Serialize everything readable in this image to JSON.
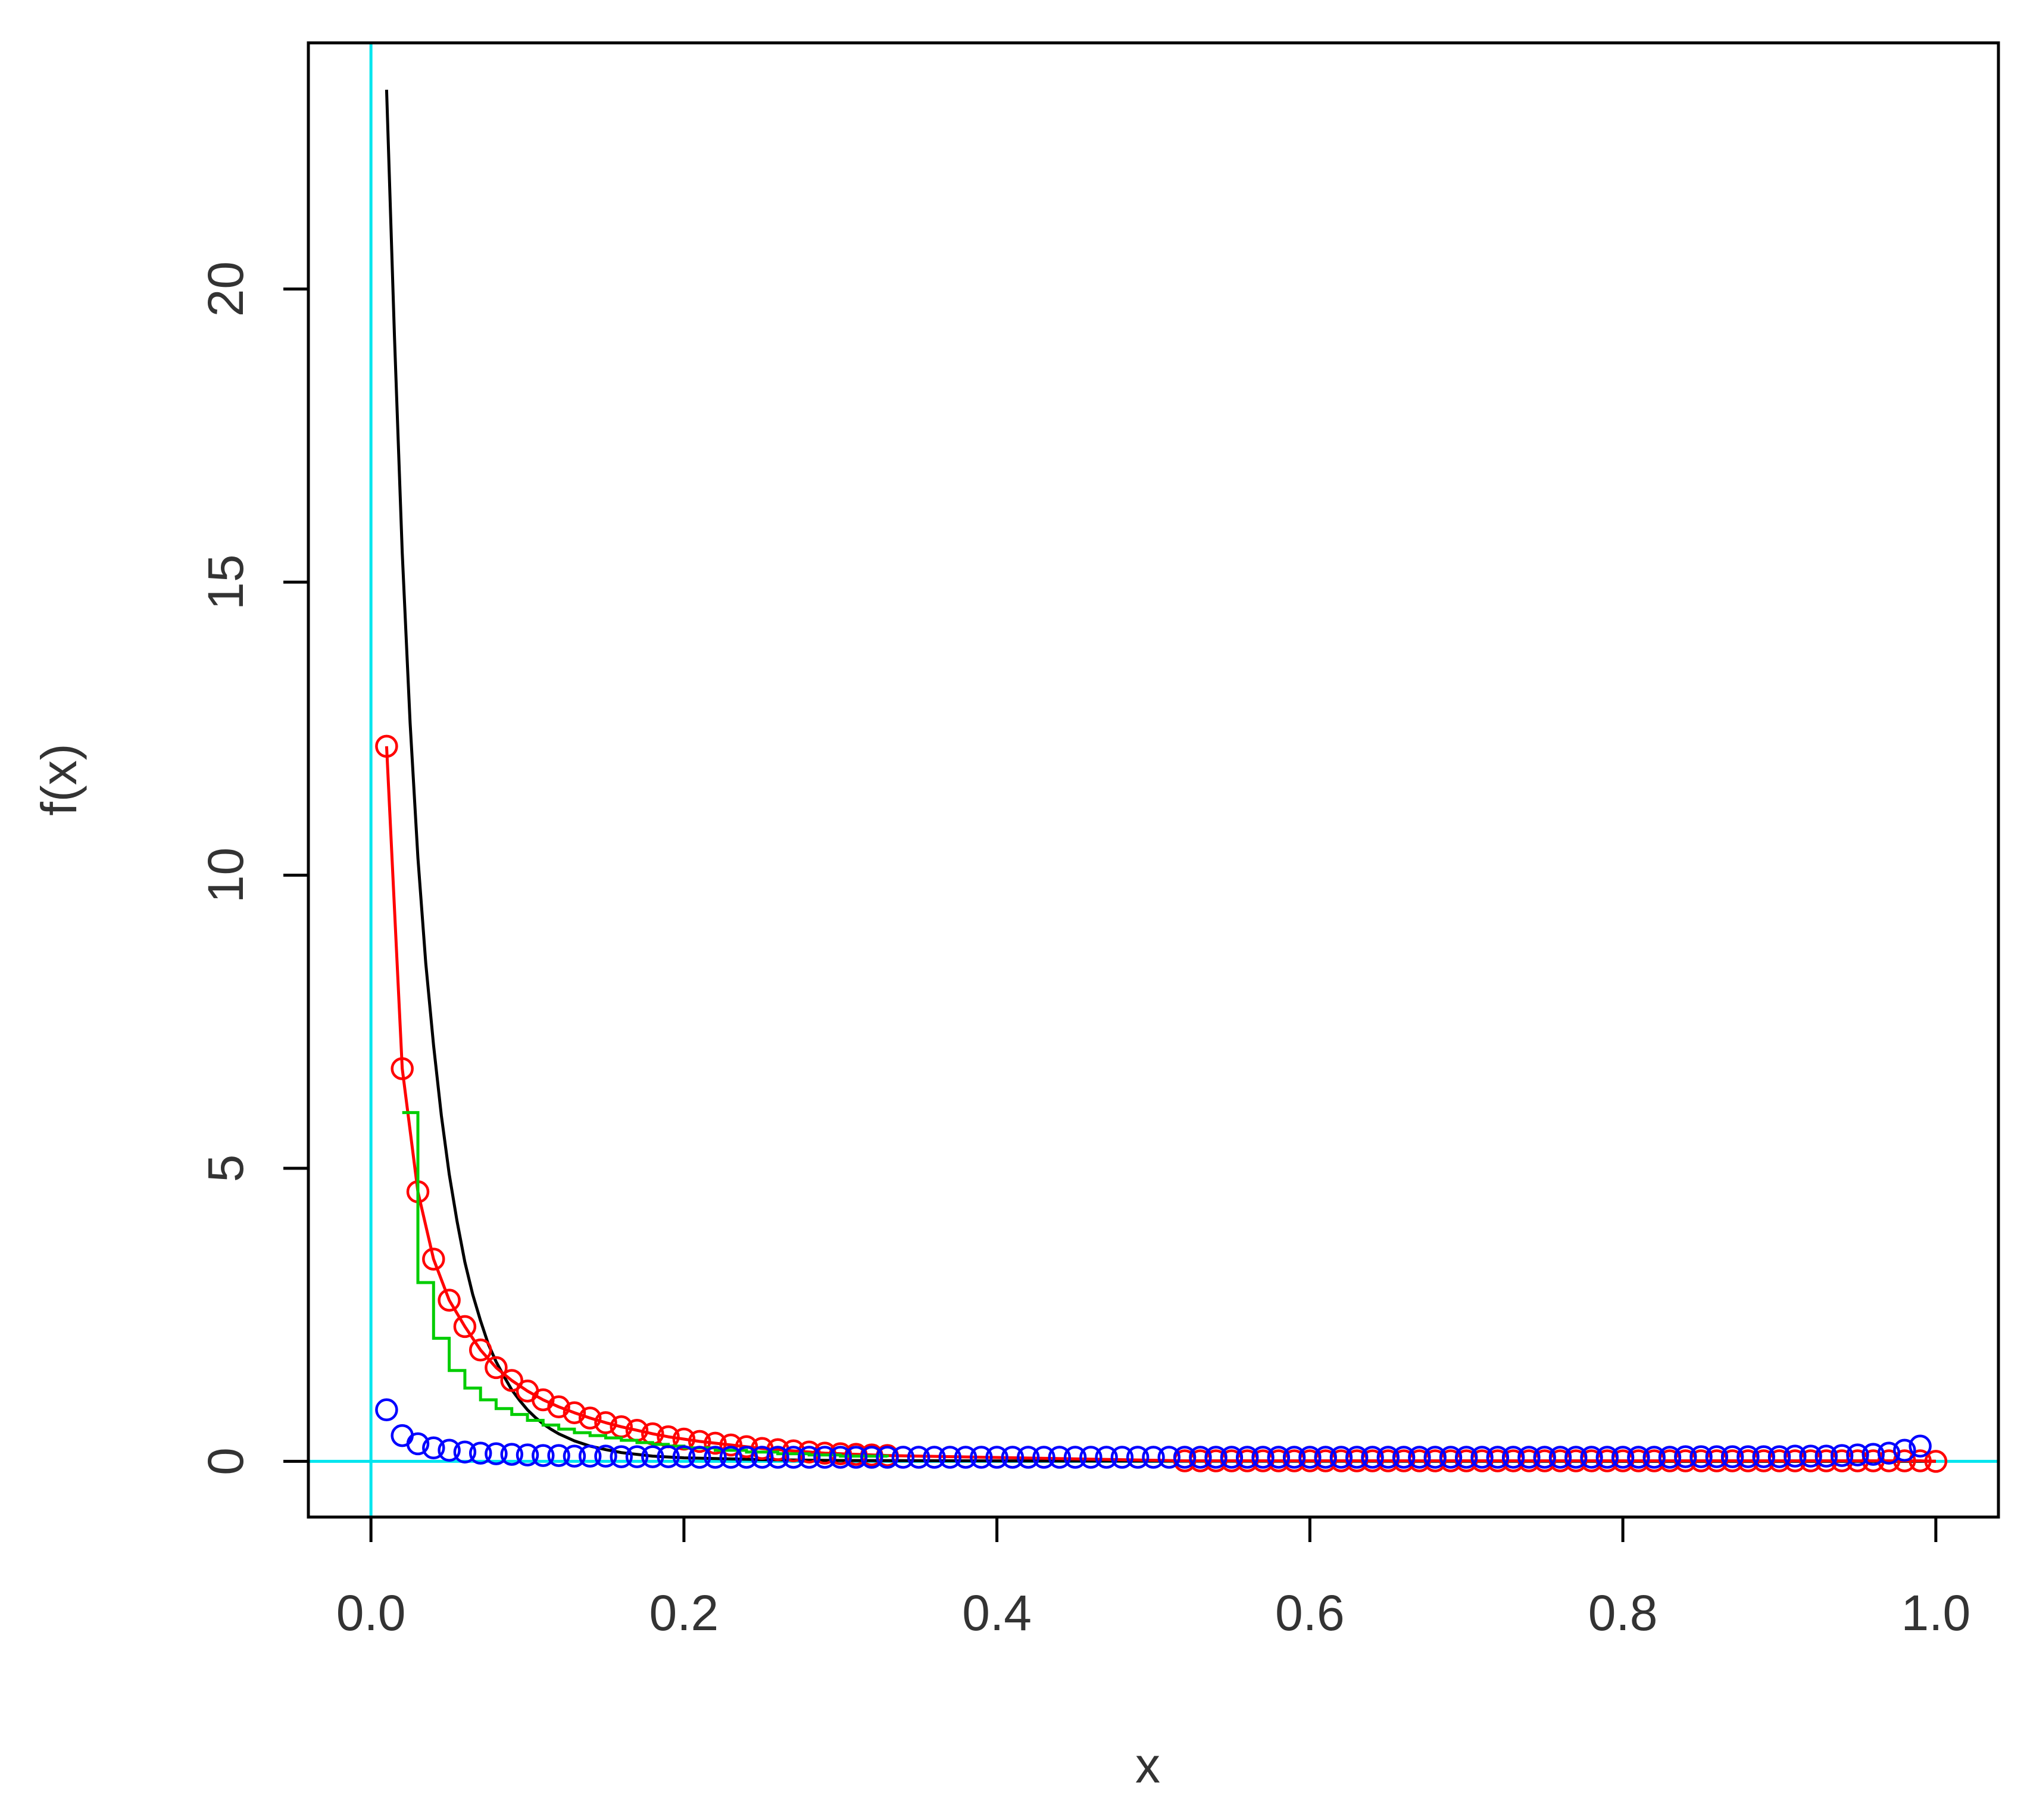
{
  "chart_data": {
    "type": "line",
    "xlabel": "x",
    "ylabel": "f(x)",
    "xlim": [
      -0.04,
      1.04
    ],
    "ylim": [
      -0.95,
      24.2
    ],
    "x_ticks": [
      0.0,
      0.2,
      0.4,
      0.6,
      0.8,
      1.0
    ],
    "x_tick_labels": [
      "0.0",
      "0.2",
      "0.4",
      "0.6",
      "0.8",
      "1.0"
    ],
    "y_ticks": [
      0,
      5,
      10,
      15,
      20
    ],
    "y_tick_labels": [
      "0",
      "5",
      "10",
      "15",
      "20"
    ],
    "grid": false,
    "reference_lines": [
      {
        "orientation": "vertical",
        "x": 0,
        "color": "#00e5ee"
      },
      {
        "orientation": "horizontal",
        "y": 0,
        "color": "#00e5ee"
      }
    ],
    "series": [
      {
        "color": "#000000",
        "style": "line",
        "x": [
          0.01,
          0.015,
          0.02,
          0.025,
          0.03,
          0.035,
          0.04,
          0.045,
          0.05,
          0.055,
          0.06,
          0.065,
          0.07,
          0.075,
          0.08,
          0.085,
          0.09,
          0.095,
          0.1,
          0.105,
          0.11,
          0.115,
          0.12,
          0.13,
          0.14,
          0.15,
          0.16,
          0.18,
          0.2,
          0.25,
          0.3,
          0.4,
          0.5,
          0.6,
          0.7,
          0.8,
          0.9,
          1.0
        ],
        "y": [
          23.4,
          19.2,
          15.5,
          12.6,
          10.3,
          8.5,
          7.1,
          5.9,
          4.9,
          4.1,
          3.4,
          2.85,
          2.4,
          2.0,
          1.7,
          1.45,
          1.22,
          1.04,
          0.88,
          0.75,
          0.64,
          0.55,
          0.47,
          0.35,
          0.26,
          0.2,
          0.15,
          0.09,
          0.06,
          0.03,
          0.015,
          0.008,
          0.005,
          0.004,
          0.003,
          0.002,
          0.002,
          0.002
        ]
      },
      {
        "color": "#ff0000",
        "style": "line+points",
        "x": [
          0.01,
          0.02,
          0.03,
          0.04,
          0.05,
          0.06,
          0.07,
          0.08,
          0.09,
          0.1,
          0.11,
          0.12,
          0.13,
          0.14,
          0.15,
          0.16,
          0.17,
          0.18,
          0.19,
          0.2,
          0.21,
          0.22,
          0.23,
          0.24,
          0.25,
          0.26,
          0.27,
          0.28,
          0.29,
          0.3,
          0.31,
          0.32,
          0.33,
          0.52,
          0.53,
          0.54,
          0.55,
          0.56,
          0.57,
          0.58,
          0.59,
          0.6,
          0.61,
          0.62,
          0.63,
          0.64,
          0.65,
          0.66,
          0.67,
          0.68,
          0.69,
          0.7,
          0.71,
          0.72,
          0.73,
          0.74,
          0.75,
          0.76,
          0.77,
          0.78,
          0.79,
          0.8,
          0.81,
          0.82,
          0.83,
          0.84,
          0.85,
          0.86,
          0.87,
          0.88,
          0.89,
          0.9,
          0.91,
          0.92,
          0.93,
          0.94,
          0.95,
          0.96,
          0.97,
          0.98,
          0.99,
          1.0
        ],
        "y": [
          12.2,
          6.7,
          4.6,
          3.45,
          2.75,
          2.3,
          1.9,
          1.6,
          1.38,
          1.2,
          1.05,
          0.93,
          0.83,
          0.74,
          0.66,
          0.59,
          0.53,
          0.47,
          0.42,
          0.38,
          0.34,
          0.31,
          0.28,
          0.25,
          0.22,
          0.2,
          0.18,
          0.16,
          0.14,
          0.13,
          0.12,
          0.11,
          0.1,
          0.01,
          0.01,
          0.01,
          0.01,
          0.01,
          0.01,
          0.01,
          0.01,
          0.01,
          0.01,
          0.01,
          0.01,
          0.01,
          0.01,
          0.01,
          0.01,
          0.01,
          0.01,
          0.01,
          0.01,
          0.01,
          0.01,
          0.01,
          0.01,
          0.01,
          0.01,
          0.01,
          0.01,
          0.01,
          0.01,
          0.01,
          0.01,
          0.01,
          0.01,
          0.01,
          0.01,
          0.01,
          0.01,
          0.01,
          0.01,
          0.01,
          0.01,
          0.01,
          0.01,
          0.01,
          0.01,
          0.01,
          0.01,
          0.0
        ]
      },
      {
        "color": "#00cd00",
        "style": "step",
        "x": [
          0.02,
          0.03,
          0.04,
          0.05,
          0.06,
          0.07,
          0.08,
          0.09,
          0.1,
          0.11,
          0.12,
          0.13,
          0.14,
          0.15,
          0.16,
          0.17,
          0.18,
          0.19,
          0.2,
          0.22,
          0.24,
          0.26,
          0.28,
          0.3,
          0.33
        ],
        "y": [
          5.95,
          3.05,
          2.1,
          1.55,
          1.25,
          1.05,
          0.9,
          0.8,
          0.7,
          0.62,
          0.55,
          0.49,
          0.44,
          0.4,
          0.36,
          0.32,
          0.29,
          0.26,
          0.23,
          0.19,
          0.16,
          0.13,
          0.11,
          0.09,
          0.07
        ]
      },
      {
        "color": "#0000ff",
        "style": "points",
        "x": [
          0.01,
          0.02,
          0.03,
          0.04,
          0.05,
          0.06,
          0.07,
          0.08,
          0.09,
          0.1,
          0.11,
          0.12,
          0.13,
          0.14,
          0.15,
          0.16,
          0.17,
          0.18,
          0.19,
          0.2,
          0.21,
          0.22,
          0.23,
          0.24,
          0.25,
          0.26,
          0.27,
          0.28,
          0.29,
          0.3,
          0.31,
          0.32,
          0.33,
          0.34,
          0.35,
          0.36,
          0.37,
          0.38,
          0.39,
          0.4,
          0.41,
          0.42,
          0.43,
          0.44,
          0.45,
          0.46,
          0.47,
          0.48,
          0.49,
          0.5,
          0.51,
          0.52,
          0.53,
          0.54,
          0.55,
          0.56,
          0.57,
          0.58,
          0.59,
          0.6,
          0.61,
          0.62,
          0.63,
          0.64,
          0.65,
          0.66,
          0.67,
          0.68,
          0.69,
          0.7,
          0.71,
          0.72,
          0.73,
          0.74,
          0.75,
          0.76,
          0.77,
          0.78,
          0.79,
          0.8,
          0.81,
          0.82,
          0.83,
          0.84,
          0.85,
          0.86,
          0.87,
          0.88,
          0.89,
          0.9,
          0.91,
          0.92,
          0.93,
          0.94,
          0.95,
          0.96,
          0.97,
          0.98,
          0.99
        ],
        "y": [
          0.88,
          0.44,
          0.3,
          0.23,
          0.19,
          0.16,
          0.14,
          0.13,
          0.12,
          0.11,
          0.1,
          0.1,
          0.09,
          0.09,
          0.09,
          0.08,
          0.08,
          0.08,
          0.08,
          0.08,
          0.07,
          0.07,
          0.07,
          0.07,
          0.07,
          0.07,
          0.07,
          0.07,
          0.07,
          0.07,
          0.07,
          0.07,
          0.07,
          0.07,
          0.07,
          0.07,
          0.07,
          0.07,
          0.07,
          0.07,
          0.07,
          0.07,
          0.07,
          0.07,
          0.07,
          0.07,
          0.07,
          0.07,
          0.07,
          0.07,
          0.07,
          0.07,
          0.07,
          0.07,
          0.07,
          0.07,
          0.07,
          0.07,
          0.07,
          0.07,
          0.07,
          0.07,
          0.07,
          0.07,
          0.07,
          0.07,
          0.07,
          0.07,
          0.07,
          0.07,
          0.07,
          0.07,
          0.07,
          0.07,
          0.07,
          0.07,
          0.07,
          0.07,
          0.07,
          0.07,
          0.07,
          0.07,
          0.07,
          0.08,
          0.08,
          0.08,
          0.08,
          0.08,
          0.08,
          0.08,
          0.09,
          0.09,
          0.09,
          0.1,
          0.11,
          0.12,
          0.14,
          0.19,
          0.26
        ]
      }
    ]
  }
}
